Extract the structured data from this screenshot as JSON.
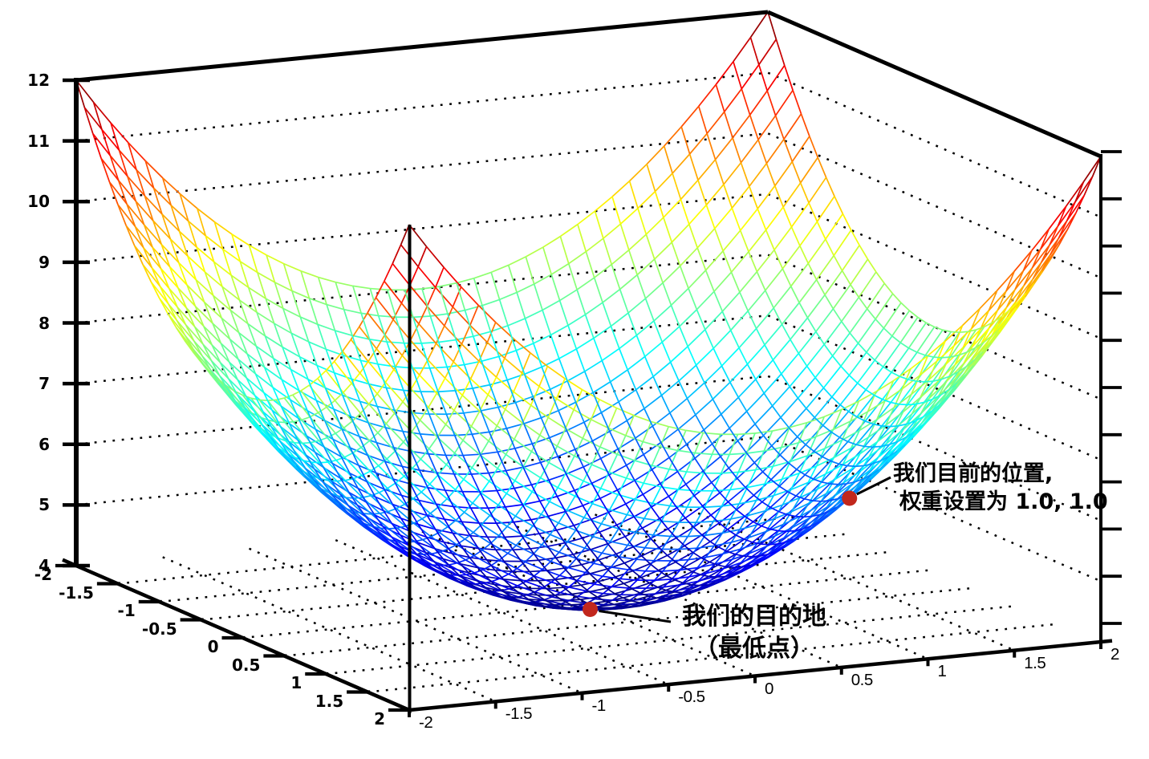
{
  "chart_data": {
    "type": "surface",
    "title": "",
    "surface_function": "z = x^2 + y^2 + 4",
    "x_range": [
      -2,
      2
    ],
    "y_range": [
      -2,
      2
    ],
    "z_range": [
      4,
      12
    ],
    "x_tick_labels": [
      "-2",
      "-1.5",
      "-1",
      "-0.5",
      "0",
      "0.5",
      "1",
      "1.5",
      "2"
    ],
    "y_tick_labels": [
      "-2",
      "-1.5",
      "-1",
      "-0.5",
      "0",
      "0.5",
      "1",
      "1.5",
      "2"
    ],
    "z_tick_labels": [
      "4",
      "5",
      "6",
      "7",
      "8",
      "9",
      "10",
      "11",
      "12"
    ],
    "mesh_step": 0.1,
    "colormap": "jet",
    "grid_style": "dotted",
    "legend": "none",
    "right_edge_minor_tick_count": 11,
    "colors": {
      "background": "#ffffff",
      "axis": "#000000",
      "grid_dots": "#000000",
      "marker": "#c1271d",
      "text": "#000000"
    },
    "points": [
      {
        "id": "current-position",
        "x": 1.0,
        "y": 1.0,
        "z": 6.0,
        "marker_color": "#c1271d",
        "label_lines": [
          "我们目前的位置,",
          "权重设置为 1.0, 1.0"
        ]
      },
      {
        "id": "destination",
        "x": 0.0,
        "y": 0.0,
        "z": 4.0,
        "marker_color": "#c1271d",
        "label_lines": [
          "我们的目的地",
          "（最低点）"
        ]
      }
    ]
  }
}
